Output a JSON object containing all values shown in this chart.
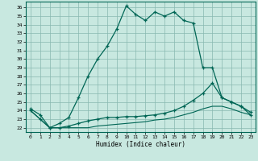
{
  "xlabel": "Humidex (Indice chaleur)",
  "background_color": "#c8e8e0",
  "line_color": "#006655",
  "xlim": [
    -0.5,
    23.5
  ],
  "ylim": [
    21.5,
    36.7
  ],
  "xticks": [
    0,
    1,
    2,
    3,
    4,
    5,
    6,
    7,
    8,
    9,
    10,
    11,
    12,
    13,
    14,
    15,
    16,
    17,
    18,
    19,
    20,
    21,
    22,
    23
  ],
  "yticks": [
    22,
    23,
    24,
    25,
    26,
    27,
    28,
    29,
    30,
    31,
    32,
    33,
    34,
    35,
    36
  ],
  "main_x": [
    0,
    1,
    2,
    3,
    4,
    5,
    6,
    7,
    8,
    9,
    10,
    11,
    12,
    13,
    14,
    15,
    16,
    17,
    18,
    19,
    20,
    21,
    22,
    23
  ],
  "main_y": [
    24.2,
    23.5,
    22.0,
    22.5,
    23.2,
    25.5,
    28.0,
    30.0,
    31.5,
    33.5,
    36.2,
    35.2,
    34.5,
    35.5,
    35.0,
    35.5,
    34.5,
    34.2,
    29.0,
    29.0,
    25.5,
    25.0,
    24.5,
    23.5
  ],
  "line2_x": [
    0,
    1,
    2,
    3,
    4,
    5,
    6,
    7,
    8,
    9,
    10,
    11,
    12,
    13,
    14,
    15,
    16,
    17,
    18,
    19,
    20,
    21,
    22,
    23
  ],
  "line2_y": [
    24.0,
    23.0,
    22.0,
    22.0,
    22.2,
    22.5,
    22.8,
    23.0,
    23.2,
    23.2,
    23.3,
    23.3,
    23.4,
    23.5,
    23.7,
    24.0,
    24.5,
    25.2,
    26.0,
    27.2,
    25.5,
    25.0,
    24.5,
    23.8
  ],
  "line3_x": [
    0,
    1,
    2,
    3,
    4,
    5,
    6,
    7,
    8,
    9,
    10,
    11,
    12,
    13,
    14,
    15,
    16,
    17,
    18,
    19,
    20,
    21,
    22,
    23
  ],
  "line3_y": [
    24.0,
    23.0,
    22.0,
    22.0,
    22.0,
    22.0,
    22.0,
    22.2,
    22.3,
    22.4,
    22.5,
    22.6,
    22.7,
    22.9,
    23.0,
    23.2,
    23.5,
    23.8,
    24.2,
    24.5,
    24.5,
    24.2,
    23.8,
    23.5
  ]
}
